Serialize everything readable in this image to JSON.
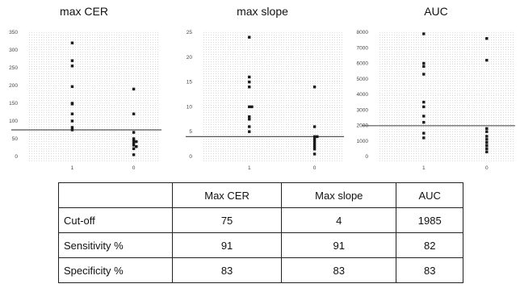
{
  "chart_data": [
    {
      "type": "scatter",
      "title": "max CER",
      "categories": [
        "1",
        "0"
      ],
      "ylim": [
        0,
        350
      ],
      "yticks": [
        0,
        50,
        100,
        150,
        200,
        250,
        300,
        350
      ],
      "grid": true,
      "cutoff": 75,
      "series": [
        {
          "category": "1",
          "values": [
            320,
            270,
            255,
            197,
            150,
            148,
            120,
            100,
            82,
            75
          ]
        },
        {
          "category": "0",
          "values": [
            190,
            120,
            68,
            50,
            45,
            42,
            38,
            32,
            28,
            22,
            5
          ]
        }
      ]
    },
    {
      "type": "scatter",
      "title": "max slope",
      "categories": [
        "1",
        "0"
      ],
      "ylim": [
        0,
        25
      ],
      "yticks": [
        0,
        5,
        10,
        15,
        20,
        25
      ],
      "grid": true,
      "cutoff": 4,
      "series": [
        {
          "category": "1",
          "values": [
            24,
            16,
            15,
            14,
            10,
            10,
            8,
            7.5,
            6,
            5
          ]
        },
        {
          "category": "0",
          "values": [
            14,
            6,
            4,
            4,
            3.5,
            3,
            2.5,
            2,
            1.5,
            0.5
          ]
        }
      ]
    },
    {
      "type": "scatter",
      "title": "AUC",
      "categories": [
        "1",
        "0"
      ],
      "ylim": [
        0,
        8000
      ],
      "yticks": [
        0,
        1000,
        2000,
        3000,
        4000,
        5000,
        6000,
        7000,
        8000
      ],
      "grid": true,
      "cutoff": 1985,
      "series": [
        {
          "category": "1",
          "values": [
            7900,
            6000,
            5800,
            5300,
            3500,
            3200,
            2600,
            2200,
            1500,
            1200
          ]
        },
        {
          "category": "0",
          "values": [
            7600,
            6200,
            1800,
            1600,
            1300,
            1100,
            900,
            700,
            500,
            300
          ]
        }
      ]
    }
  ],
  "table": {
    "headers": [
      "",
      "Max CER",
      "Max slope",
      "AUC"
    ],
    "rows": [
      {
        "label": "Cut-off",
        "values": [
          "75",
          "4",
          "1985"
        ]
      },
      {
        "label": "Sensitivity %",
        "values": [
          "91",
          "91",
          "82"
        ]
      },
      {
        "label": "Specificity %",
        "values": [
          "83",
          "83",
          "83"
        ]
      }
    ]
  }
}
